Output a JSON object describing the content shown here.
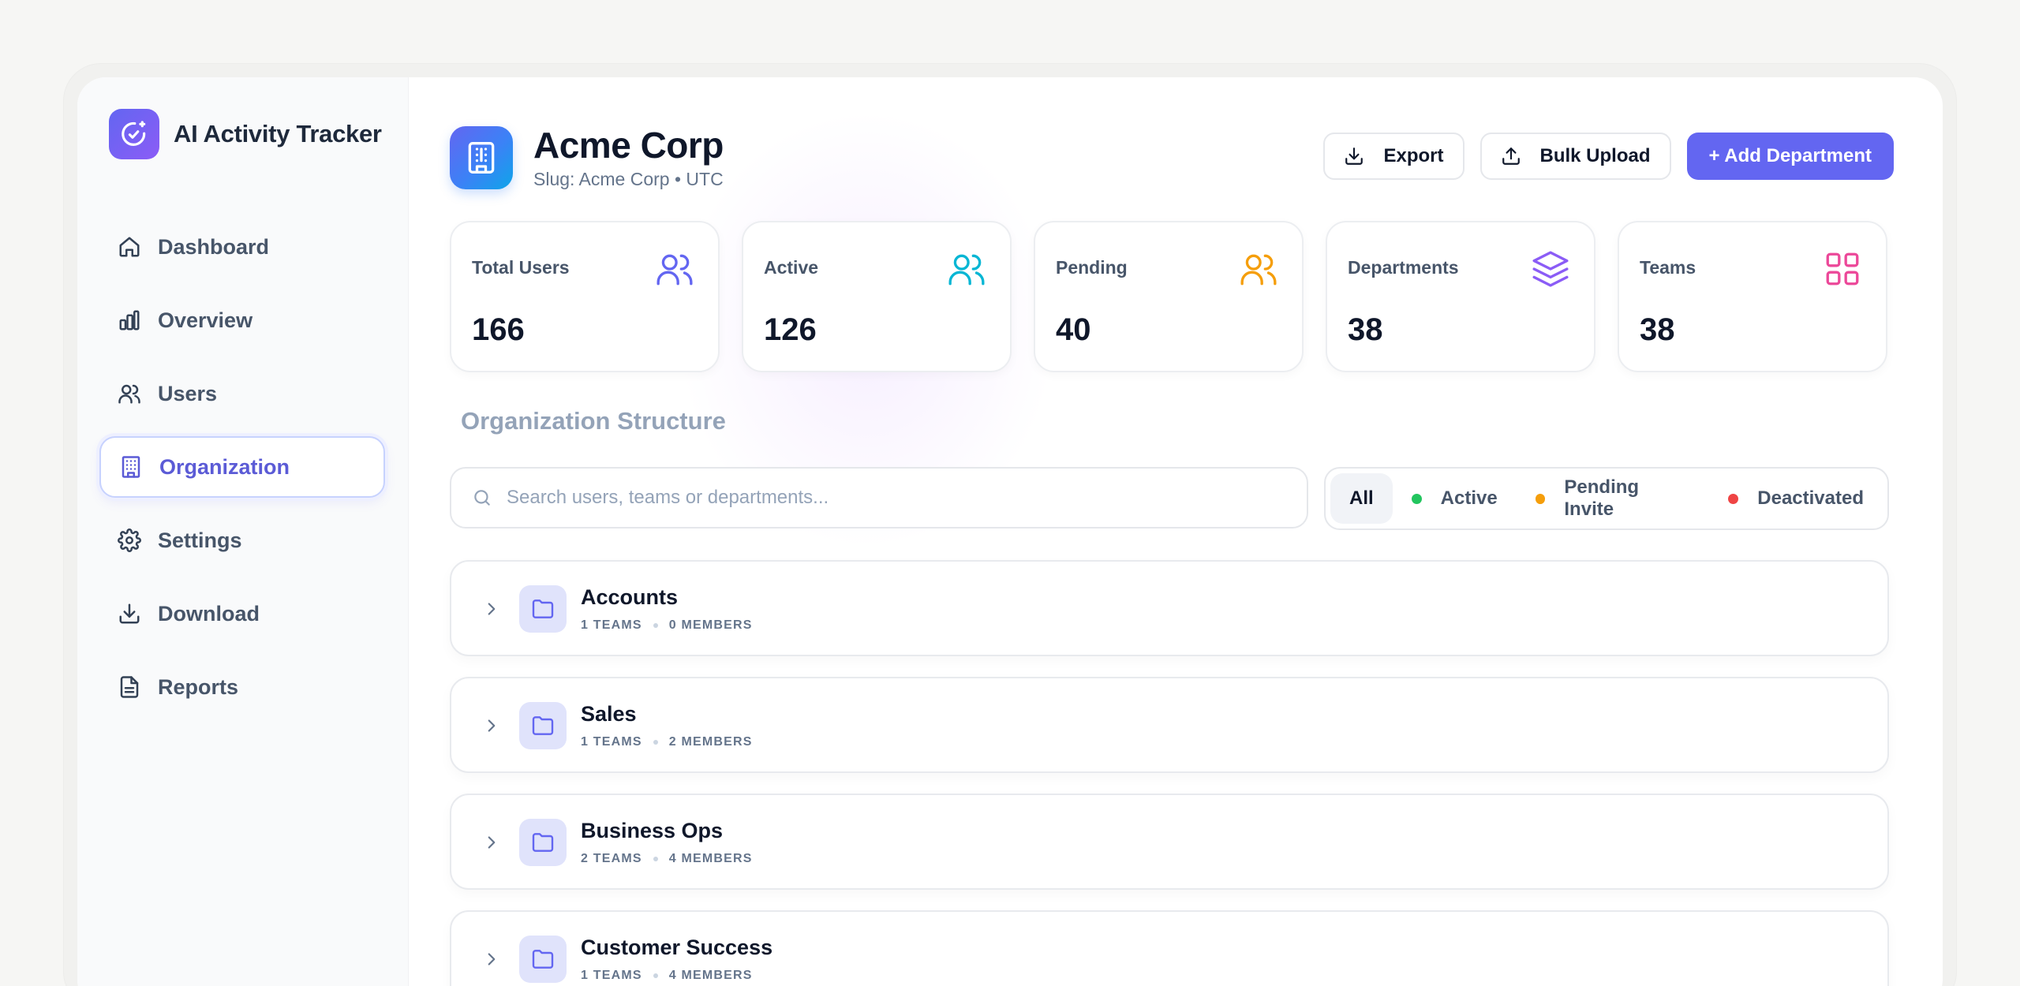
{
  "app": {
    "name": "AI Activity Tracker",
    "logo_icon": "clock-sparkle-icon"
  },
  "sidebar": {
    "items": [
      {
        "label": "Dashboard",
        "icon": "home-icon",
        "active": false
      },
      {
        "label": "Overview",
        "icon": "bar-chart-icon",
        "active": false
      },
      {
        "label": "Users",
        "icon": "users-icon",
        "active": false
      },
      {
        "label": "Organization",
        "icon": "building-icon",
        "active": true
      },
      {
        "label": "Settings",
        "icon": "gear-icon",
        "active": false
      },
      {
        "label": "Download",
        "icon": "download-icon",
        "active": false
      },
      {
        "label": "Reports",
        "icon": "file-text-icon",
        "active": false
      }
    ]
  },
  "org": {
    "title": "Acme Corp",
    "subtitle": "Slug: Acme Corp • UTC",
    "logo_icon": "building-icon"
  },
  "actions": {
    "export_label": "Export",
    "bulk_upload_label": "Bulk Upload",
    "add_department_label": "+ Add Department"
  },
  "stats": [
    {
      "label": "Total Users",
      "value": "166",
      "icon": "users-icon",
      "color": "#6366f1"
    },
    {
      "label": "Active",
      "value": "126",
      "icon": "users-icon",
      "color": "#06b6d4"
    },
    {
      "label": "Pending",
      "value": "40",
      "icon": "users-icon",
      "color": "#f59e0b"
    },
    {
      "label": "Departments",
      "value": "38",
      "icon": "layers-icon",
      "color": "#8b5cf6"
    },
    {
      "label": "Teams",
      "value": "38",
      "icon": "grid-icon",
      "color": "#ec4899"
    }
  ],
  "section": {
    "title": "Organization Structure"
  },
  "search": {
    "placeholder": "Search users, teams or departments...",
    "value": ""
  },
  "filters": [
    {
      "label": "All",
      "selected": true,
      "dot_color": ""
    },
    {
      "label": "Active",
      "selected": false,
      "dot_color": "#22c55e"
    },
    {
      "label": "Pending Invite",
      "selected": false,
      "dot_color": "#f59e0b"
    },
    {
      "label": "Deactivated",
      "selected": false,
      "dot_color": "#ef4444"
    }
  ],
  "departments": [
    {
      "name": "Accounts",
      "teams": "1 TEAMS",
      "members": "0 MEMBERS"
    },
    {
      "name": "Sales",
      "teams": "1 TEAMS",
      "members": "2 MEMBERS"
    },
    {
      "name": "Business Ops",
      "teams": "2 TEAMS",
      "members": "4 MEMBERS"
    },
    {
      "name": "Customer Success",
      "teams": "1 TEAMS",
      "members": "4 MEMBERS"
    }
  ],
  "colors": {
    "accent": "#6366f1",
    "active_nav_text": "#5b5bd6",
    "folder_bg": "#e0e3fb",
    "folder_stroke": "#6366f1"
  }
}
